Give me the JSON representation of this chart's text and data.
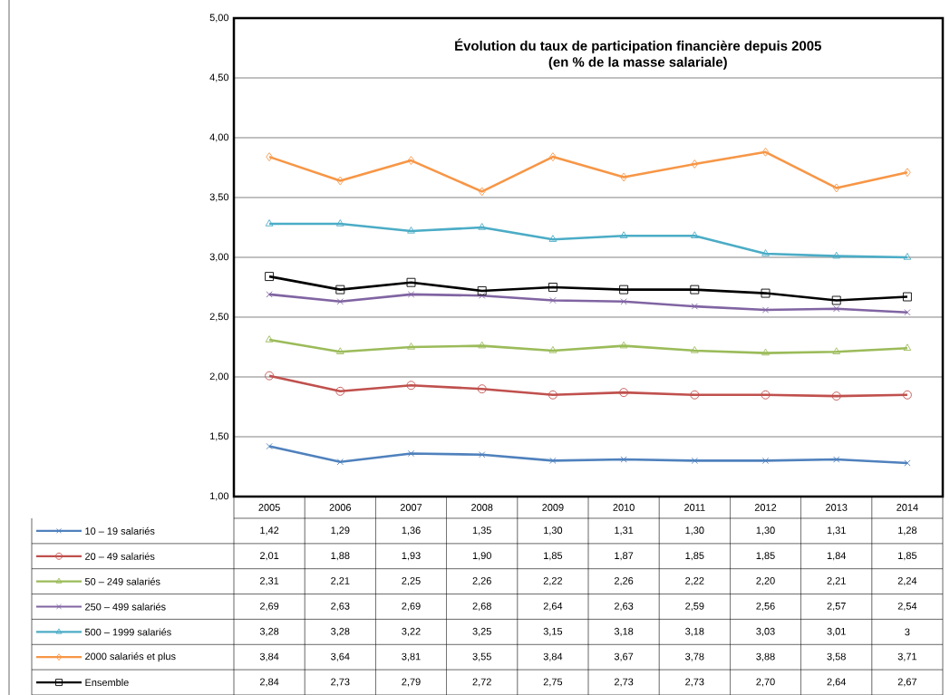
{
  "chart_data": {
    "type": "line",
    "title": "Évolution du taux de participation financière depuis 2005",
    "subtitle": "(en % de la masse salariale)",
    "categories": [
      "2005",
      "2006",
      "2007",
      "2008",
      "2009",
      "2010",
      "2011",
      "2012",
      "2013",
      "2014"
    ],
    "series": [
      {
        "name": "10 – 19 salariés",
        "color": "#4f81bd",
        "marker": "cross",
        "values": [
          1.42,
          1.29,
          1.36,
          1.35,
          1.3,
          1.31,
          1.3,
          1.3,
          1.31,
          1.28
        ],
        "value_labels": [
          "1,42",
          "1,29",
          "1,36",
          "1,35",
          "1,30",
          "1,31",
          "1,30",
          "1,30",
          "1,31",
          "1,28"
        ]
      },
      {
        "name": "20 – 49 salariés",
        "color": "#c0504d",
        "marker": "circle",
        "values": [
          2.01,
          1.88,
          1.93,
          1.9,
          1.85,
          1.87,
          1.85,
          1.85,
          1.84,
          1.85
        ],
        "value_labels": [
          "2,01",
          "1,88",
          "1,93",
          "1,90",
          "1,85",
          "1,87",
          "1,85",
          "1,85",
          "1,84",
          "1,85"
        ]
      },
      {
        "name": "50 – 249 salariés",
        "color": "#9bbb59",
        "marker": "triangle",
        "values": [
          2.31,
          2.21,
          2.25,
          2.26,
          2.22,
          2.26,
          2.22,
          2.2,
          2.21,
          2.24
        ],
        "value_labels": [
          "2,31",
          "2,21",
          "2,25",
          "2,26",
          "2,22",
          "2,26",
          "2,22",
          "2,20",
          "2,21",
          "2,24"
        ]
      },
      {
        "name": "250 – 499 salariés",
        "color": "#8064a2",
        "marker": "cross",
        "values": [
          2.69,
          2.63,
          2.69,
          2.68,
          2.64,
          2.63,
          2.59,
          2.56,
          2.57,
          2.54
        ],
        "value_labels": [
          "2,69",
          "2,63",
          "2,69",
          "2,68",
          "2,64",
          "2,63",
          "2,59",
          "2,56",
          "2,57",
          "2,54"
        ]
      },
      {
        "name": "500 – 1999 salariés",
        "color": "#4bacc6",
        "marker": "triangle",
        "values": [
          3.28,
          3.28,
          3.22,
          3.25,
          3.15,
          3.18,
          3.18,
          3.03,
          3.01,
          3
        ],
        "value_labels": [
          "3,28",
          "3,28",
          "3,22",
          "3,25",
          "3,15",
          "3,18",
          "3,18",
          "3,03",
          "3,01",
          "3"
        ]
      },
      {
        "name": "2000 salariés et plus",
        "color": "#f79646",
        "marker": "diamond",
        "values": [
          3.84,
          3.64,
          3.81,
          3.55,
          3.84,
          3.67,
          3.78,
          3.88,
          3.58,
          3.71
        ],
        "value_labels": [
          "3,84",
          "3,64",
          "3,81",
          "3,55",
          "3,84",
          "3,67",
          "3,78",
          "3,88",
          "3,58",
          "3,71"
        ]
      },
      {
        "name": "Ensemble",
        "color": "#000000",
        "marker": "square",
        "values": [
          2.84,
          2.73,
          2.79,
          2.72,
          2.75,
          2.73,
          2.73,
          2.7,
          2.64,
          2.67
        ],
        "value_labels": [
          "2,84",
          "2,73",
          "2,79",
          "2,72",
          "2,75",
          "2,73",
          "2,73",
          "2,70",
          "2,64",
          "2,67"
        ]
      }
    ],
    "ylim": [
      1,
      5
    ],
    "yticks": [
      {
        "value": 1,
        "label": "1,00"
      },
      {
        "value": 1.5,
        "label": "1,50"
      },
      {
        "value": 2,
        "label": "2,00"
      },
      {
        "value": 2.5,
        "label": "2,50"
      },
      {
        "value": 3,
        "label": "3,00"
      },
      {
        "value": 3.5,
        "label": "3,50"
      },
      {
        "value": 4,
        "label": "4,00"
      },
      {
        "value": 4.5,
        "label": "4,50"
      },
      {
        "value": 5,
        "label": "5,00"
      }
    ],
    "grid": "y",
    "legend": "bottom",
    "line_style": "solid"
  }
}
